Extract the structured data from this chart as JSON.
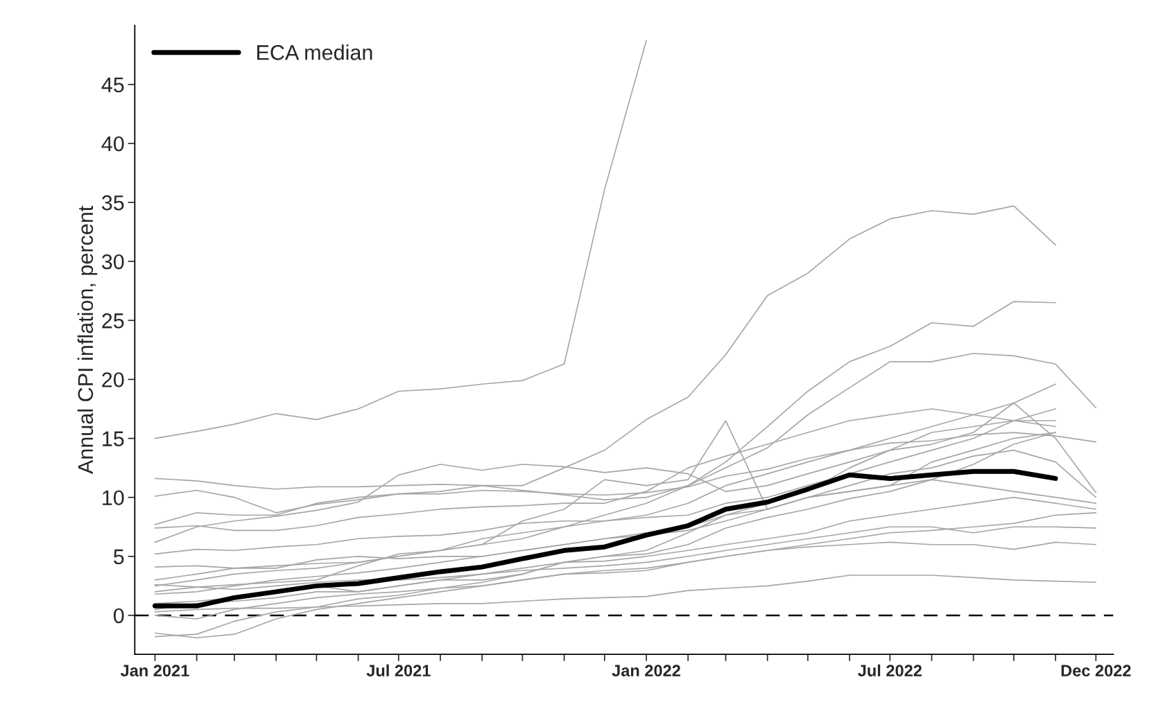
{
  "chart_data": {
    "type": "line",
    "ylabel": "Annual CPI inflation, percent",
    "x": [
      "2021-01",
      "2021-02",
      "2021-03",
      "2021-04",
      "2021-05",
      "2021-06",
      "2021-07",
      "2021-08",
      "2021-09",
      "2021-10",
      "2021-11",
      "2021-12",
      "2022-01",
      "2022-02",
      "2022-03",
      "2022-04",
      "2022-05",
      "2022-06",
      "2022-07",
      "2022-08",
      "2022-09",
      "2022-10",
      "2022-11",
      "2022-12"
    ],
    "xlim": [
      "2020-12-17",
      "2022-12-14"
    ],
    "xticks": [
      {
        "value": "2021-01",
        "label": "Jan 2021"
      },
      {
        "value": "2021-02",
        "label": null
      },
      {
        "value": "2021-03",
        "label": null
      },
      {
        "value": "2021-04",
        "label": null
      },
      {
        "value": "2021-05",
        "label": null
      },
      {
        "value": "2021-06",
        "label": null
      },
      {
        "value": "2021-07",
        "label": "Jul 2021"
      },
      {
        "value": "2021-08",
        "label": null
      },
      {
        "value": "2021-09",
        "label": null
      },
      {
        "value": "2021-10",
        "label": null
      },
      {
        "value": "2021-11",
        "label": null
      },
      {
        "value": "2021-12",
        "label": null
      },
      {
        "value": "2022-01",
        "label": "Jan 2022"
      },
      {
        "value": "2022-02",
        "label": null
      },
      {
        "value": "2022-03",
        "label": null
      },
      {
        "value": "2022-04",
        "label": null
      },
      {
        "value": "2022-05",
        "label": null
      },
      {
        "value": "2022-06",
        "label": null
      },
      {
        "value": "2022-07",
        "label": "Jul 2022"
      },
      {
        "value": "2022-08",
        "label": null
      },
      {
        "value": "2022-09",
        "label": null
      },
      {
        "value": "2022-10",
        "label": null
      },
      {
        "value": "2022-11",
        "label": null
      },
      {
        "value": "2022-12",
        "label": "Dec 2022"
      }
    ],
    "ylim": [
      -3.3,
      50
    ],
    "yticks": [
      0,
      5,
      10,
      15,
      20,
      25,
      30,
      35,
      40,
      45
    ],
    "grid": false,
    "legend": "top left",
    "line_style": "solid",
    "marker": "none",
    "ref_lines": [
      {
        "axis": "y",
        "value": 0,
        "line_style": "dashed",
        "color": "#000000"
      }
    ],
    "series": [
      {
        "color": "#a6a6a6",
        "values": [
          15.0,
          15.6,
          16.2,
          17.1,
          16.6,
          17.5,
          19.0,
          19.2,
          19.6,
          19.9,
          21.3,
          36.1,
          48.7,
          null,
          null,
          null,
          null,
          null,
          null,
          null,
          null,
          null,
          null,
          null
        ]
      },
      {
        "color": "#a6a6a6",
        "values": [
          7.7,
          8.7,
          8.5,
          8.5,
          9.5,
          10.0,
          10.3,
          10.5,
          11.0,
          11.0,
          12.5,
          14.0,
          16.6,
          18.5,
          22.1,
          27.1,
          29.0,
          31.9,
          33.6,
          34.3,
          34.0,
          34.7,
          31.4,
          null
        ]
      },
      {
        "color": "#a6a6a6",
        "values": [
          11.6,
          11.4,
          11.0,
          10.7,
          10.9,
          10.9,
          11.0,
          11.1,
          11.0,
          10.6,
          10.2,
          9.8,
          10.0,
          11.0,
          12.5,
          14.2,
          17.0,
          19.3,
          21.5,
          21.5,
          22.2,
          22.0,
          21.3,
          17.6
        ]
      },
      {
        "color": "#a6a6a6",
        "values": [
          2.5,
          3.0,
          3.5,
          3.8,
          4.0,
          4.5,
          5.0,
          5.5,
          6.0,
          6.5,
          7.5,
          8.5,
          9.5,
          11.0,
          13.0,
          16.0,
          19.0,
          21.5,
          22.8,
          24.8,
          24.5,
          26.6,
          26.5,
          null
        ]
      },
      {
        "color": "#a6a6a6",
        "values": [
          10.1,
          10.6,
          10.0,
          8.7,
          9.4,
          9.8,
          10.3,
          10.3,
          10.6,
          10.5,
          10.3,
          10.2,
          10.4,
          10.9,
          11.8,
          12.4,
          13.3,
          14.0,
          14.6,
          14.8,
          15.3,
          15.5,
          15.2,
          14.7
        ]
      },
      {
        "color": "#a6a6a6",
        "values": [
          0.3,
          0.5,
          0.6,
          0.6,
          0.7,
          0.8,
          0.9,
          1.0,
          1.0,
          1.2,
          1.4,
          1.5,
          1.6,
          2.1,
          2.3,
          2.5,
          2.9,
          3.4,
          3.4,
          3.4,
          3.2,
          3.0,
          2.9,
          2.8
        ]
      },
      {
        "color": "#a6a6a6",
        "values": [
          -1.8,
          -1.6,
          -0.5,
          0.3,
          0.7,
          1.4,
          1.7,
          2.3,
          2.8,
          3.5,
          4.5,
          5.0,
          5.2,
          6.0,
          7.4,
          8.3,
          9.0,
          9.9,
          10.5,
          11.5,
          12.8,
          14.5,
          15.5,
          null
        ]
      },
      {
        "color": "#a6a6a6",
        "values": [
          -1.5,
          -1.9,
          -1.6,
          -0.3,
          0.5,
          1.0,
          1.5,
          2.0,
          2.5,
          3.0,
          3.5,
          3.6,
          3.8,
          4.5,
          5.0,
          5.5,
          6.0,
          6.5,
          7.0,
          7.2,
          7.5,
          7.8,
          8.5,
          8.7
        ]
      },
      {
        "color": "#a6a6a6",
        "values": [
          1.8,
          2.0,
          2.5,
          3.0,
          3.3,
          3.6,
          4.0,
          4.5,
          5.0,
          5.5,
          6.0,
          6.5,
          7.0,
          7.5,
          8.5,
          9.0,
          10.0,
          10.5,
          11.0,
          13.0,
          14.0,
          15.0,
          15.5,
          null
        ]
      },
      {
        "color": "#a6a6a6",
        "values": [
          5.2,
          5.6,
          5.5,
          5.8,
          6.0,
          6.5,
          6.7,
          6.8,
          7.2,
          7.8,
          8.0,
          8.0,
          8.3,
          8.5,
          9.5,
          10.0,
          11.0,
          12.0,
          13.0,
          14.0,
          15.0,
          16.5,
          17.5,
          null
        ]
      },
      {
        "color": "#a6a6a6",
        "values": [
          3.0,
          3.5,
          4.0,
          4.2,
          4.4,
          4.5,
          5.0,
          5.5,
          6.5,
          7.0,
          7.5,
          8.0,
          8.5,
          9.5,
          11.0,
          12.0,
          13.0,
          14.0,
          15.0,
          16.0,
          17.0,
          18.0,
          19.6,
          null
        ]
      },
      {
        "color": "#a6a6a6",
        "values": [
          0.5,
          1.0,
          1.2,
          1.5,
          2.0,
          2.0,
          2.5,
          3.0,
          3.5,
          4.0,
          4.5,
          4.6,
          5.0,
          5.5,
          6.0,
          6.5,
          7.0,
          8.0,
          8.5,
          9.0,
          9.5,
          10.0,
          9.5,
          9.0
        ]
      },
      {
        "color": "#a6a6a6",
        "values": [
          2.6,
          2.4,
          2.2,
          2.5,
          2.8,
          3.0,
          3.0,
          3.2,
          3.5,
          3.8,
          4.0,
          4.2,
          4.5,
          5.0,
          5.5,
          6.0,
          6.5,
          7.0,
          7.5,
          7.5,
          7.0,
          7.5,
          7.5,
          7.4
        ]
      },
      {
        "color": "#a6a6a6",
        "values": [
          0.0,
          -0.3,
          0.5,
          1.0,
          1.5,
          1.8,
          2.0,
          2.3,
          2.5,
          3.0,
          3.5,
          3.8,
          4.0,
          4.5,
          5.0,
          5.5,
          5.8,
          6.0,
          6.2,
          6.0,
          6.0,
          5.6,
          6.2,
          6.0
        ]
      },
      {
        "color": "#a6a6a6",
        "values": [
          7.4,
          7.6,
          7.2,
          7.2,
          7.6,
          8.3,
          8.6,
          9.0,
          9.2,
          9.3,
          9.5,
          9.5,
          10.5,
          12.5,
          13.5,
          14.5,
          15.5,
          16.5,
          17.0,
          17.5,
          17.0,
          16.5,
          16.5,
          null
        ]
      },
      {
        "color": "#a6a6a6",
        "values": [
          6.2,
          7.5,
          8.0,
          8.4,
          8.9,
          9.6,
          11.9,
          12.8,
          12.3,
          12.8,
          12.6,
          12.1,
          12.5,
          12.0,
          10.5,
          11.0,
          12.0,
          13.0,
          14.0,
          14.5,
          15.5,
          18.0,
          15.0,
          10.4
        ]
      },
      {
        "color": "#a6a6a6",
        "values": [
          2.0,
          2.4,
          2.6,
          2.8,
          3.0,
          4.2,
          5.2,
          5.5,
          6.0,
          8.0,
          9.0,
          11.5,
          11.0,
          11.5,
          16.5,
          9.0,
          10.0,
          11.0,
          12.0,
          12.5,
          13.5,
          14.0,
          13.0,
          10.0
        ]
      },
      {
        "color": "#a6a6a6",
        "values": [
          4.1,
          4.2,
          4.0,
          4.0,
          4.7,
          5.0,
          4.8,
          5.0,
          5.0,
          5.5,
          6.0,
          6.5,
          6.8,
          7.2,
          8.0,
          9.0,
          10.0,
          10.5,
          11.0,
          11.5,
          11.0,
          10.5,
          10.0,
          9.5
        ]
      },
      {
        "color": "#a6a6a6",
        "values": [
          1.0,
          1.2,
          1.5,
          2.0,
          2.5,
          2.0,
          2.5,
          3.0,
          3.0,
          3.5,
          4.5,
          5.0,
          5.5,
          7.0,
          8.5,
          9.5,
          10.5,
          12.5,
          14.0,
          15.5,
          16.0,
          16.5,
          16.0,
          null
        ]
      },
      {
        "name": "ECA median",
        "color": "#000000",
        "values": [
          0.8,
          0.8,
          1.5,
          2.0,
          2.5,
          2.7,
          3.2,
          3.7,
          4.1,
          4.8,
          5.5,
          5.8,
          6.8,
          7.6,
          9.0,
          9.6,
          10.7,
          11.9,
          11.6,
          11.9,
          12.2,
          12.2,
          11.6,
          null
        ]
      }
    ]
  }
}
